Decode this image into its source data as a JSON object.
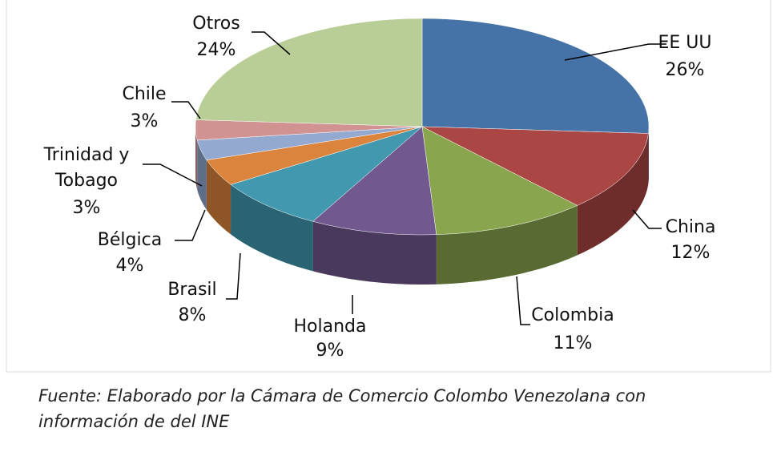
{
  "chart_data": {
    "type": "pie",
    "categories": [
      "EE UU",
      "China",
      "Colombia",
      "Holanda",
      "Brasil",
      "Bélgica",
      "Trinidad y Tobago",
      "Chile",
      "Otros"
    ],
    "values": [
      26,
      12,
      11,
      9,
      8,
      4,
      3,
      3,
      24
    ],
    "value_labels": [
      "26%",
      "12%",
      "11%",
      "9%",
      "8%",
      "4%",
      "3%",
      "3%",
      "24%"
    ],
    "colors": [
      "#4572a7",
      "#aa4643",
      "#89a54e",
      "#71588f",
      "#4198af",
      "#db843d",
      "#93a9cf",
      "#d19392",
      "#b9cd96"
    ],
    "source": "Fuente: Elaborado por la Cámara de Comercio Colombo Venezolana con información de del INE"
  }
}
